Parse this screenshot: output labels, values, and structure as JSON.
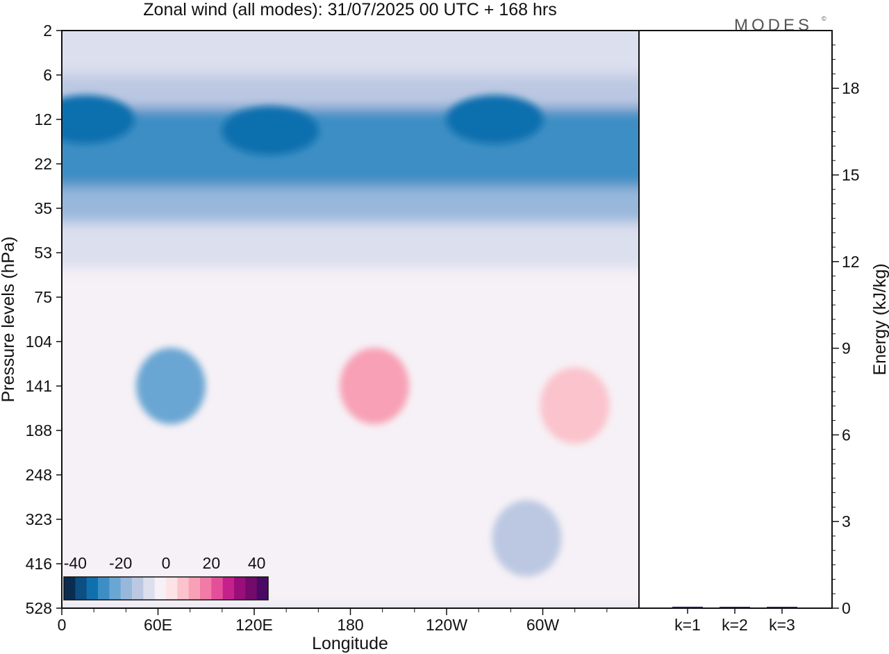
{
  "chart_data": {
    "type": "heatmap",
    "title": "Zonal wind (all modes):  31/07/2025  00 UTC  + 168 hrs",
    "brand": "MODES",
    "brand_mark": "©",
    "xlabel": "Longitude",
    "ylabel": "Pressure levels (hPa)",
    "x_ticks": [
      "0",
      "60E",
      "120E",
      "180",
      "120W",
      "60W"
    ],
    "x_tick_values": [
      0,
      60,
      120,
      180,
      240,
      300
    ],
    "x_range": [
      0,
      360
    ],
    "y_ticks": [
      "2",
      "6",
      "12",
      "22",
      "35",
      "53",
      "75",
      "104",
      "141",
      "188",
      "248",
      "323",
      "416",
      "528"
    ],
    "colorbar": {
      "ticks": [
        "-40",
        "-20",
        "0",
        "20",
        "40"
      ],
      "tick_values": [
        -40,
        -20,
        0,
        20,
        40
      ],
      "range": [
        -45,
        45
      ],
      "colors": [
        "#0b2b4f",
        "#0c4f82",
        "#1070ae",
        "#3d8ec4",
        "#6aa6d3",
        "#98b8db",
        "#bcc8e2",
        "#dcdfee",
        "#f6f1f6",
        "#fde3e5",
        "#fbc3cc",
        "#f8a0b5",
        "#f27aa6",
        "#e44f9a",
        "#c5218b",
        "#9a0e7a",
        "#730a6c",
        "#4a0a63"
      ]
    },
    "right_panel": {
      "ylabel": "Energy (kJ/kg)",
      "y_ticks": [
        "0",
        "3",
        "6",
        "9",
        "12",
        "15",
        "18"
      ],
      "y_tick_values": [
        0,
        3,
        6,
        9,
        12,
        15,
        18
      ],
      "ylim": [
        0,
        20
      ],
      "categories": [
        "k=1",
        "k=2",
        "k=3"
      ],
      "values": [
        0.05,
        0.02,
        0.02
      ],
      "bar_color": "#1a1a5e"
    },
    "wind_bands": [
      {
        "level_from": 2,
        "level_to": 6,
        "value": -8
      },
      {
        "level_from": 6,
        "level_to": 10,
        "value": -15
      },
      {
        "level_from": 10,
        "level_to": 28,
        "value": -30
      },
      {
        "level_from": 28,
        "level_to": 40,
        "value": -20
      },
      {
        "level_from": 40,
        "level_to": 60,
        "value": -10
      },
      {
        "level_from": 60,
        "level_to": 528,
        "value": -3
      }
    ],
    "wind_features": [
      {
        "lon": 15,
        "level": 12,
        "value": -35
      },
      {
        "lon": 130,
        "level": 14,
        "value": -35
      },
      {
        "lon": 270,
        "level": 12,
        "value": -35
      },
      {
        "lon": 68,
        "level": 141,
        "value": -22
      },
      {
        "lon": 195,
        "level": 141,
        "value": 12
      },
      {
        "lon": 320,
        "level": 160,
        "value": 8
      },
      {
        "lon": 290,
        "level": 360,
        "value": -12
      }
    ]
  }
}
